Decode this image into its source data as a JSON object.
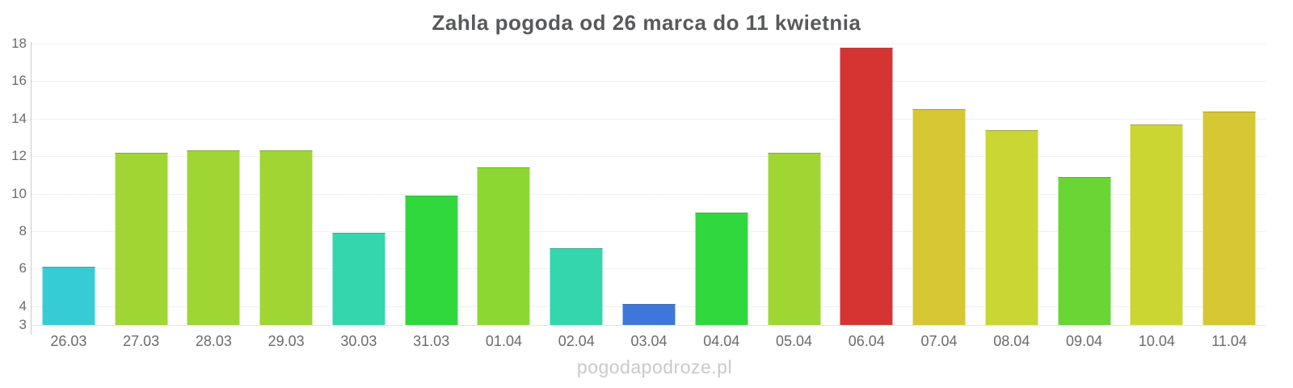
{
  "title": "Zahla pogoda od 26 marca do 11 kwietnia",
  "watermark": "pogodapodroze.pl",
  "colors": {
    "title": "#58595b",
    "axis_label": "#6b6b6b",
    "grid": "#e4e4e4",
    "axis_line": "#cccccc",
    "watermark": "#c9c9c9",
    "background": "#ffffff"
  },
  "chart_data": {
    "type": "bar",
    "title": "Zahla pogoda od 26 marca do 11 kwietnia",
    "categories": [
      "26.03",
      "27.03",
      "28.03",
      "29.03",
      "30.03",
      "31.03",
      "01.04",
      "02.04",
      "03.04",
      "04.04",
      "05.04",
      "06.04",
      "07.04",
      "08.04",
      "09.04",
      "10.04",
      "11.04"
    ],
    "values": [
      6.1,
      12.2,
      12.3,
      12.3,
      7.9,
      9.9,
      11.4,
      7.1,
      4.1,
      9.0,
      12.2,
      17.8,
      14.5,
      13.4,
      10.9,
      13.7,
      14.4
    ],
    "bar_colors": [
      "#36ccd5",
      "#9fd633",
      "#9fd633",
      "#9fd633",
      "#33d6ad",
      "#30d83e",
      "#8dd733",
      "#33d6ad",
      "#3d77d9",
      "#30d83e",
      "#9fd633",
      "#d63333",
      "#d6c733",
      "#c9d633",
      "#69d636",
      "#cbd633",
      "#d6c733"
    ],
    "ylim": [
      3,
      18
    ],
    "y_ticks": [
      3,
      4,
      6,
      8,
      10,
      12,
      14,
      16,
      18
    ],
    "grid_ticks": [
      4,
      6,
      8,
      10,
      12,
      14,
      16,
      18
    ],
    "grid": true,
    "legend": false,
    "xlabel": "",
    "ylabel": ""
  }
}
